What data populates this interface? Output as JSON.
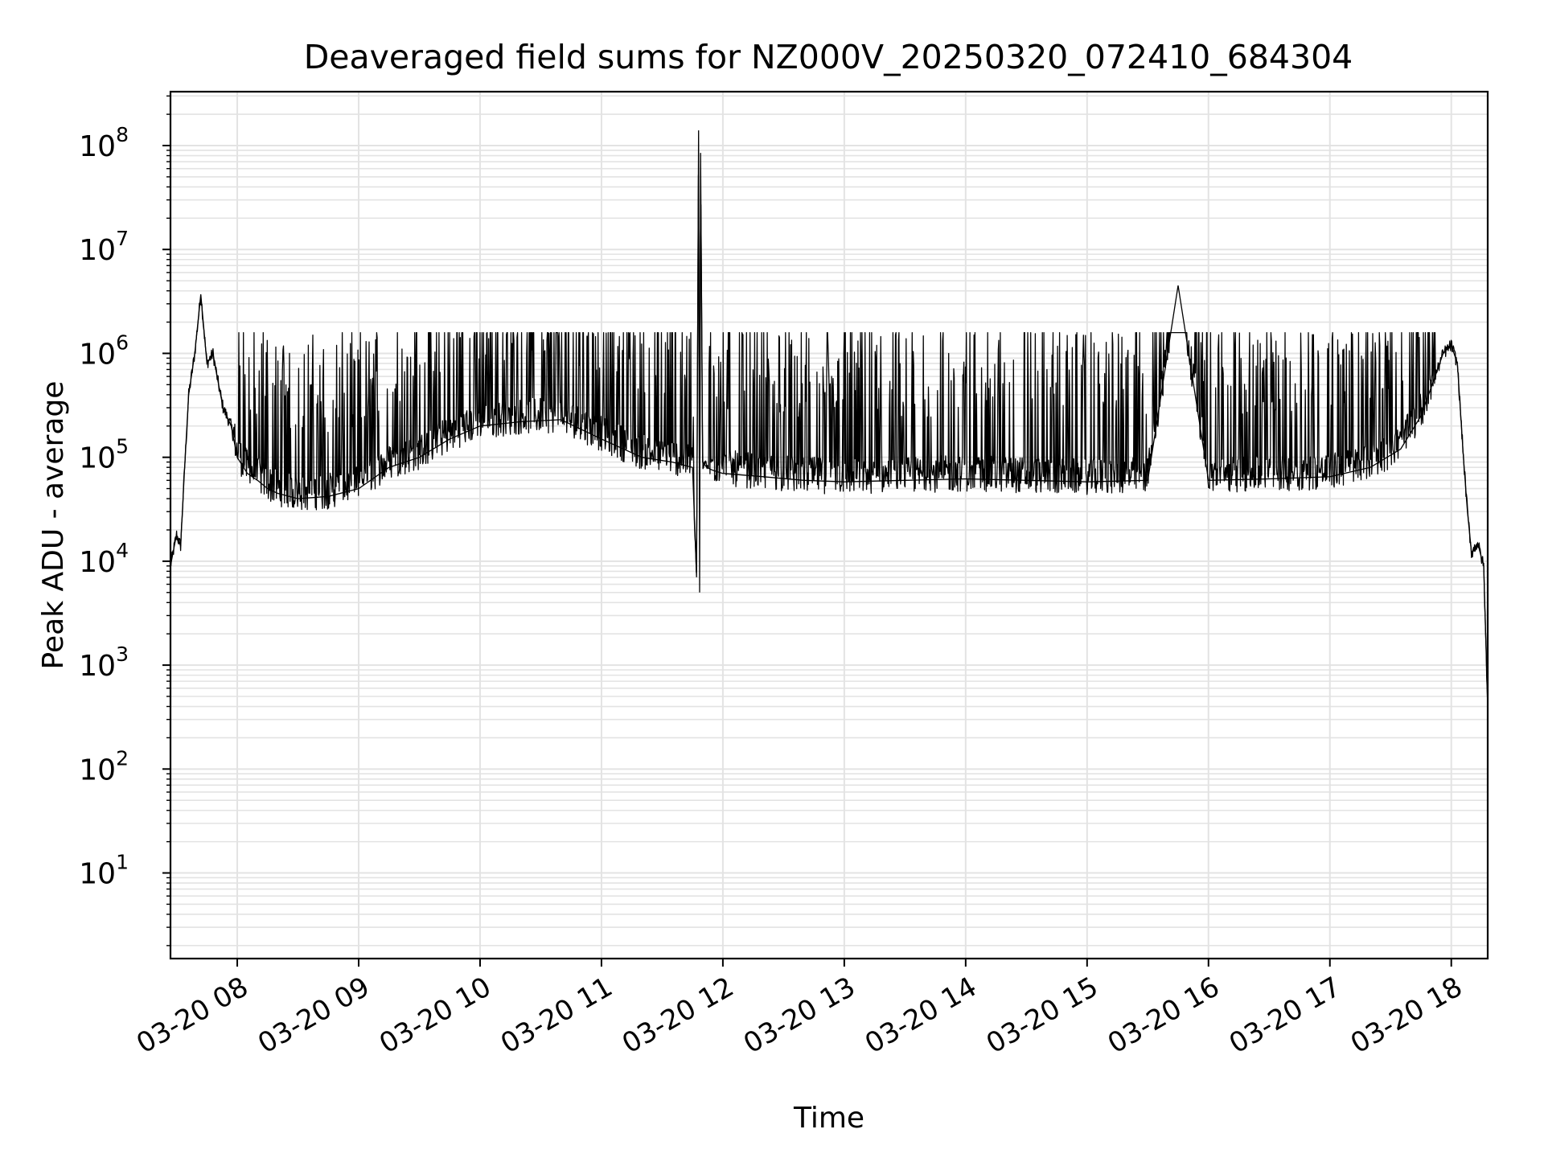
{
  "chart_data": {
    "type": "line",
    "title": "Deaveraged field sums for NZ000V_20250320_072410_684304",
    "xlabel": "Time",
    "ylabel": "Peak ADU - average",
    "yscale": "log",
    "ylim": [
      1.5,
      330000000
    ],
    "xlim": [
      "2025-03-20 07:27",
      "2025-03-20 18:18"
    ],
    "grid": true,
    "line_color": "#000000",
    "grid_color": "#e3e3e3",
    "x_ticks": [
      {
        "value": "2025-03-20 08:00",
        "label": "03-20 08"
      },
      {
        "value": "2025-03-20 09:00",
        "label": "03-20 09"
      },
      {
        "value": "2025-03-20 10:00",
        "label": "03-20 10"
      },
      {
        "value": "2025-03-20 11:00",
        "label": "03-20 11"
      },
      {
        "value": "2025-03-20 12:00",
        "label": "03-20 12"
      },
      {
        "value": "2025-03-20 13:00",
        "label": "03-20 13"
      },
      {
        "value": "2025-03-20 14:00",
        "label": "03-20 14"
      },
      {
        "value": "2025-03-20 15:00",
        "label": "03-20 15"
      },
      {
        "value": "2025-03-20 16:00",
        "label": "03-20 16"
      },
      {
        "value": "2025-03-20 17:00",
        "label": "03-20 17"
      },
      {
        "value": "2025-03-20 18:00",
        "label": "03-20 18"
      }
    ],
    "y_ticks": [
      {
        "value": 10,
        "base": "10",
        "exp": "1"
      },
      {
        "value": 100,
        "base": "10",
        "exp": "2"
      },
      {
        "value": 1000,
        "base": "10",
        "exp": "3"
      },
      {
        "value": 10000,
        "base": "10",
        "exp": "4"
      },
      {
        "value": 100000,
        "base": "10",
        "exp": "5"
      },
      {
        "value": 1000000,
        "base": "10",
        "exp": "6"
      },
      {
        "value": 10000000,
        "base": "10",
        "exp": "7"
      },
      {
        "value": 100000000,
        "base": "10",
        "exp": "8"
      }
    ],
    "series": [
      {
        "x": [
          "2025-03-20 07:27",
          "2025-03-20 07:30",
          "2025-03-20 07:32",
          "2025-03-20 07:34",
          "2025-03-20 07:36",
          "2025-03-20 07:39",
          "2025-03-20 07:42",
          "2025-03-20 07:45",
          "2025-03-20 07:48",
          "2025-03-20 07:50",
          "2025-03-20 07:53",
          "2025-03-20 07:57",
          "2025-03-20 08:00",
          "2025-03-20 08:05",
          "2025-03-20 08:10",
          "2025-03-20 08:15",
          "2025-03-20 08:20",
          "2025-03-20 08:30",
          "2025-03-20 08:45",
          "2025-03-20 09:00",
          "2025-03-20 09:15",
          "2025-03-20 09:30",
          "2025-03-20 09:45",
          "2025-03-20 10:00",
          "2025-03-20 10:20",
          "2025-03-20 10:40",
          "2025-03-20 11:00",
          "2025-03-20 11:20",
          "2025-03-20 11:35",
          "2025-03-20 11:45",
          "2025-03-20 11:47",
          "2025-03-20 11:48",
          "2025-03-20 11:48.5",
          "2025-03-20 11:49",
          "2025-03-20 11:50",
          "2025-03-20 11:51",
          "2025-03-20 11:52",
          "2025-03-20 11:55",
          "2025-03-20 12:00",
          "2025-03-20 12:20",
          "2025-03-20 12:40",
          "2025-03-20 13:00",
          "2025-03-20 13:30",
          "2025-03-20 14:00",
          "2025-03-20 14:30",
          "2025-03-20 15:00",
          "2025-03-20 15:30",
          "2025-03-20 15:45",
          "2025-03-20 16:00",
          "2025-03-20 16:30",
          "2025-03-20 17:00",
          "2025-03-20 17:20",
          "2025-03-20 17:35",
          "2025-03-20 17:45",
          "2025-03-20 17:52",
          "2025-03-20 17:56",
          "2025-03-20 18:00",
          "2025-03-20 18:03",
          "2025-03-20 18:06",
          "2025-03-20 18:08",
          "2025-03-20 18:10",
          "2025-03-20 18:13",
          "2025-03-20 18:16",
          "2025-03-20 18:18"
        ],
        "y": [
          9000,
          18000,
          14000,
          80000,
          400000,
          1000000,
          3700000,
          800000,
          1000000,
          600000,
          300000,
          200000,
          100000,
          70000,
          60000,
          50000,
          45000,
          40000,
          42000,
          50000,
          80000,
          100000,
          150000,
          200000,
          220000,
          230000,
          150000,
          100000,
          90000,
          80000,
          7000,
          140000000,
          5000,
          85000000,
          90000,
          85000,
          80000,
          75000,
          70000,
          65000,
          60000,
          58000,
          60000,
          62000,
          60000,
          58000,
          60000,
          4500000,
          60000,
          62000,
          65000,
          80000,
          120000,
          250000,
          600000,
          1000000,
          1200000,
          800000,
          100000,
          30000,
          12000,
          15000,
          9000,
          400
        ]
      }
    ]
  }
}
